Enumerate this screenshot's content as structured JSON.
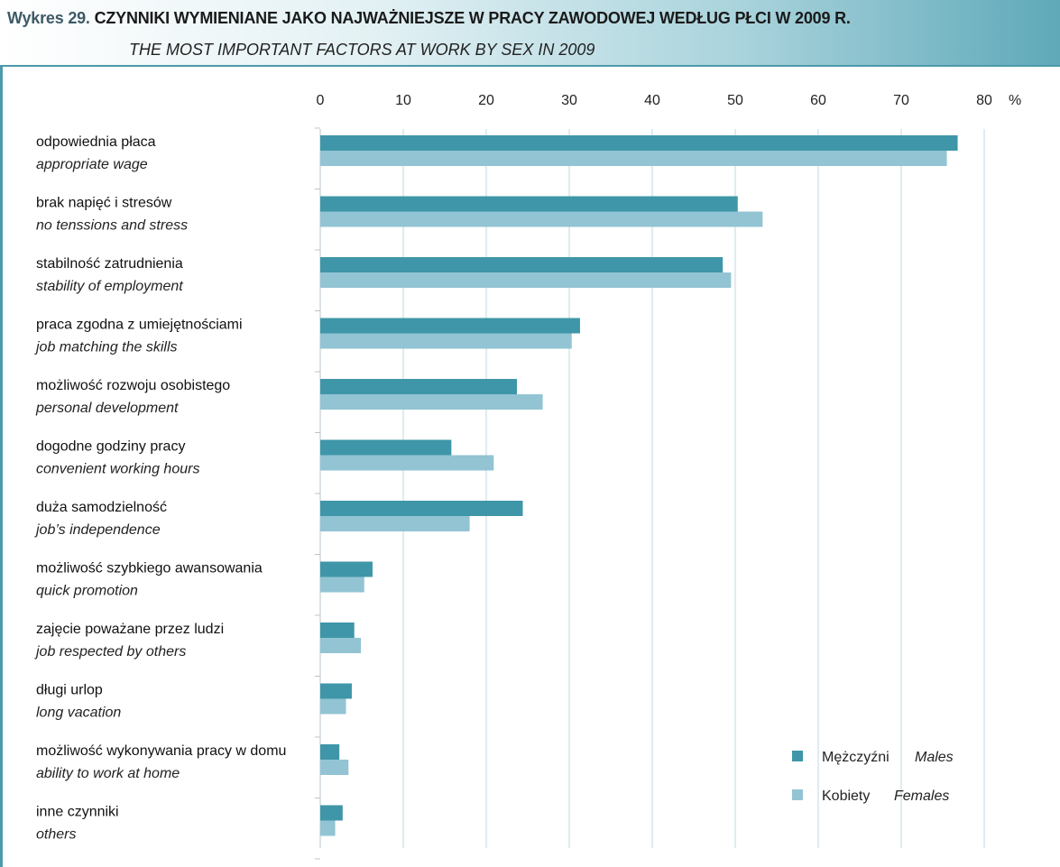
{
  "title_prefix": "Wykres 29.",
  "title": "CZYNNIKI WYMIENIANE JAKO NAJWAŻNIEJSZE W PRACY ZAWODOWEJ WEDŁUG PŁCI W 2009 R.",
  "subtitle": "THE MOST IMPORTANT FACTORS AT WORK BY SEX IN 2009",
  "colors": {
    "males": "#3f96a8",
    "females": "#92c4d3",
    "grid": "#bcd9e2",
    "accent": "#4d9aab"
  },
  "chart_data": {
    "type": "bar",
    "orientation": "horizontal",
    "xlim": [
      0,
      80
    ],
    "x_ticks": [
      "0",
      "10",
      "20",
      "30",
      "40",
      "50",
      "60",
      "70",
      "80"
    ],
    "x_unit": "%",
    "grid": true,
    "legend_position": "bottom-right",
    "categories": [
      {
        "pl": "odpowiednia płaca",
        "en": "appropriate wage"
      },
      {
        "pl": "brak napięć i stresów",
        "en": "no tenssions and stress"
      },
      {
        "pl": "stabilność zatrudnienia",
        "en": "stability of employment"
      },
      {
        "pl": "praca zgodna z umiejętnościami",
        "en": "job matching the skills"
      },
      {
        "pl": "możliwość rozwoju osobistego",
        "en": "personal development"
      },
      {
        "pl": "dogodne godziny pracy",
        "en": "convenient working hours"
      },
      {
        "pl": "duża samodzielność",
        "en": "job’s independence"
      },
      {
        "pl": "możliwość szybkiego awansowania",
        "en": "quick promotion"
      },
      {
        "pl": "zajęcie poważane przez ludzi",
        "en": "job respected by others"
      },
      {
        "pl": "długi urlop",
        "en": "long vacation"
      },
      {
        "pl": "możliwość wykonywania pracy w domu",
        "en": "ability to work at home"
      },
      {
        "pl": "inne czynniki",
        "en": "others"
      }
    ],
    "series": [
      {
        "name_pl": "Mężczyźni",
        "name_en": "Males",
        "values": [
          76.8,
          50.3,
          48.5,
          31.3,
          23.7,
          15.8,
          24.4,
          6.3,
          4.1,
          3.8,
          2.3,
          2.7
        ]
      },
      {
        "name_pl": "Kobiety",
        "name_en": "Females",
        "values": [
          75.5,
          53.3,
          49.5,
          30.3,
          26.8,
          20.9,
          18.0,
          5.3,
          4.9,
          3.1,
          3.4,
          1.8
        ]
      }
    ]
  }
}
